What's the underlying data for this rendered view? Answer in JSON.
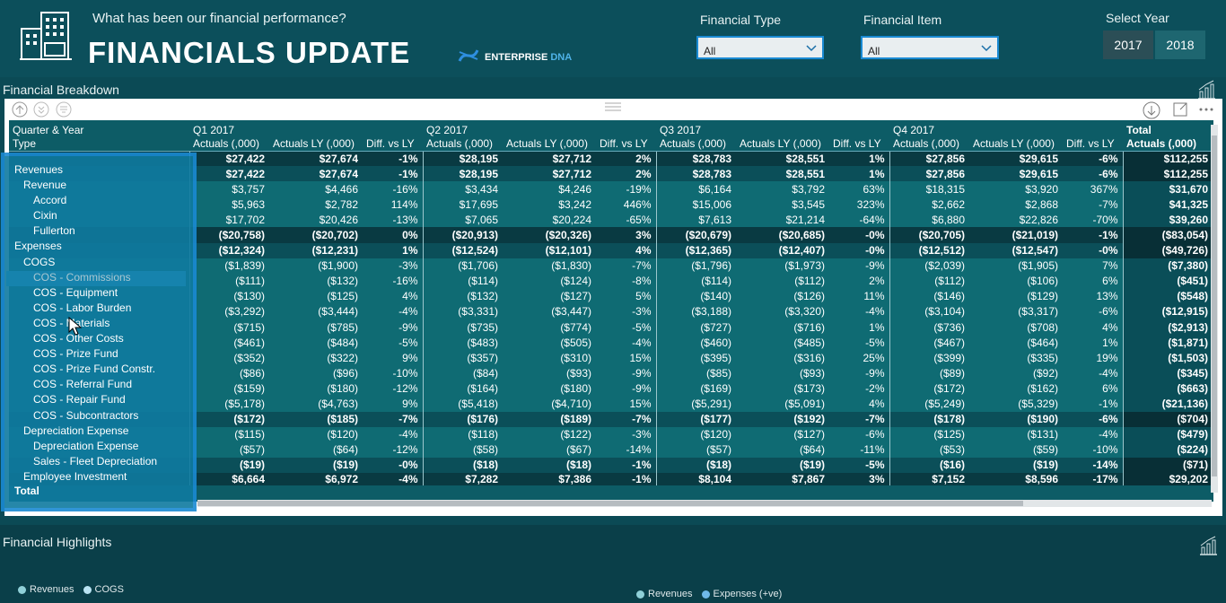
{
  "header": {
    "subtitle": "What has been our financial performance?",
    "title": "FINANCIALS UPDATE",
    "brand_a": "ENTERPRISE",
    "brand_b": "DNA"
  },
  "filters": {
    "financial_type": {
      "label": "Financial Type",
      "value": "All"
    },
    "financial_item": {
      "label": "Financial Item",
      "value": "All"
    }
  },
  "year_selector": {
    "label": "Select Year",
    "years": [
      "2017",
      "2018"
    ],
    "selected": "2017"
  },
  "breakdown": {
    "title": "Financial Breakdown",
    "row_header_1": "Quarter & Year",
    "row_header_2": "Type",
    "quarters": [
      "Q1 2017",
      "Q2 2017",
      "Q3 2017",
      "Q4 2017"
    ],
    "total_header": "Total",
    "col_actuals": "Actuals (,000)",
    "col_ly": "Actuals LY (,000)",
    "col_diff": "Diff. vs LY",
    "rows": [
      {
        "label": "Revenues",
        "level": 0,
        "kind": "grp",
        "vals": [
          "$27,422",
          "$27,674",
          "-1%",
          "$28,195",
          "$27,712",
          "2%",
          "$28,783",
          "$28,551",
          "1%",
          "$27,856",
          "$29,615",
          "-6%",
          "$112,255"
        ]
      },
      {
        "label": "Revenue",
        "level": 1,
        "kind": "sub",
        "vals": [
          "$27,422",
          "$27,674",
          "-1%",
          "$28,195",
          "$27,712",
          "2%",
          "$28,783",
          "$28,551",
          "1%",
          "$27,856",
          "$29,615",
          "-6%",
          "$112,255"
        ]
      },
      {
        "label": "Accord",
        "level": 2,
        "kind": "leaf",
        "vals": [
          "$3,757",
          "$4,466",
          "-16%",
          "$3,434",
          "$4,246",
          "-19%",
          "$6,164",
          "$3,792",
          "63%",
          "$18,315",
          "$3,920",
          "367%",
          "$31,670"
        ]
      },
      {
        "label": "Cixin",
        "level": 2,
        "kind": "leaf",
        "vals": [
          "$5,963",
          "$2,782",
          "114%",
          "$17,695",
          "$3,242",
          "446%",
          "$15,006",
          "$3,545",
          "323%",
          "$2,662",
          "$2,868",
          "-7%",
          "$41,325"
        ]
      },
      {
        "label": "Fullerton",
        "level": 2,
        "kind": "leaf",
        "vals": [
          "$17,702",
          "$20,426",
          "-13%",
          "$7,065",
          "$20,224",
          "-65%",
          "$7,613",
          "$21,214",
          "-64%",
          "$6,880",
          "$22,826",
          "-70%",
          "$39,260"
        ]
      },
      {
        "label": "Expenses",
        "level": 0,
        "kind": "grp",
        "vals": [
          "($20,758)",
          "($20,702)",
          "0%",
          "($20,913)",
          "($20,326)",
          "3%",
          "($20,679)",
          "($20,685)",
          "-0%",
          "($20,705)",
          "($21,019)",
          "-1%",
          "($83,054)"
        ]
      },
      {
        "label": "COGS",
        "level": 1,
        "kind": "sub",
        "vals": [
          "($12,324)",
          "($12,231)",
          "1%",
          "($12,524)",
          "($12,101)",
          "4%",
          "($12,365)",
          "($12,407)",
          "-0%",
          "($12,512)",
          "($12,547)",
          "-0%",
          "($49,726)"
        ]
      },
      {
        "label": "COS - Commissions",
        "level": 2,
        "kind": "leaf",
        "hl": true,
        "vals": [
          "($1,839)",
          "($1,900)",
          "-3%",
          "($1,706)",
          "($1,830)",
          "-7%",
          "($1,796)",
          "($1,973)",
          "-9%",
          "($2,039)",
          "($1,905)",
          "7%",
          "($7,380)"
        ]
      },
      {
        "label": "COS - Equipment",
        "level": 2,
        "kind": "leaf",
        "vals": [
          "($111)",
          "($132)",
          "-16%",
          "($114)",
          "($124)",
          "-8%",
          "($114)",
          "($112)",
          "2%",
          "($112)",
          "($106)",
          "6%",
          "($451)"
        ]
      },
      {
        "label": "COS - Labor Burden",
        "level": 2,
        "kind": "leaf",
        "vals": [
          "($130)",
          "($125)",
          "4%",
          "($132)",
          "($127)",
          "5%",
          "($140)",
          "($126)",
          "11%",
          "($146)",
          "($129)",
          "13%",
          "($548)"
        ]
      },
      {
        "label": "COS - Materials",
        "level": 2,
        "kind": "leaf",
        "vals": [
          "($3,292)",
          "($3,444)",
          "-4%",
          "($3,331)",
          "($3,447)",
          "-3%",
          "($3,188)",
          "($3,320)",
          "-4%",
          "($3,104)",
          "($3,317)",
          "-6%",
          "($12,915)"
        ]
      },
      {
        "label": "COS - Other Costs",
        "level": 2,
        "kind": "leaf",
        "vals": [
          "($715)",
          "($785)",
          "-9%",
          "($735)",
          "($774)",
          "-5%",
          "($727)",
          "($716)",
          "1%",
          "($736)",
          "($708)",
          "4%",
          "($2,913)"
        ]
      },
      {
        "label": "COS - Prize Fund",
        "level": 2,
        "kind": "leaf",
        "vals": [
          "($461)",
          "($484)",
          "-5%",
          "($483)",
          "($505)",
          "-4%",
          "($460)",
          "($485)",
          "-5%",
          "($467)",
          "($464)",
          "1%",
          "($1,871)"
        ]
      },
      {
        "label": "COS - Prize Fund Constr.",
        "level": 2,
        "kind": "leaf",
        "vals": [
          "($352)",
          "($322)",
          "9%",
          "($357)",
          "($310)",
          "15%",
          "($395)",
          "($316)",
          "25%",
          "($399)",
          "($335)",
          "19%",
          "($1,503)"
        ]
      },
      {
        "label": "COS - Referral Fund",
        "level": 2,
        "kind": "leaf",
        "vals": [
          "($86)",
          "($96)",
          "-10%",
          "($84)",
          "($93)",
          "-9%",
          "($85)",
          "($93)",
          "-9%",
          "($89)",
          "($92)",
          "-4%",
          "($345)"
        ]
      },
      {
        "label": "COS - Repair Fund",
        "level": 2,
        "kind": "leaf",
        "vals": [
          "($159)",
          "($180)",
          "-12%",
          "($164)",
          "($180)",
          "-9%",
          "($169)",
          "($173)",
          "-2%",
          "($172)",
          "($162)",
          "6%",
          "($663)"
        ]
      },
      {
        "label": "COS - Subcontractors",
        "level": 2,
        "kind": "leaf",
        "vals": [
          "($5,178)",
          "($4,763)",
          "9%",
          "($5,418)",
          "($4,710)",
          "15%",
          "($5,291)",
          "($5,091)",
          "4%",
          "($5,249)",
          "($5,329)",
          "-1%",
          "($21,136)"
        ]
      },
      {
        "label": "Depreciation Expense",
        "level": 1,
        "kind": "sub",
        "vals": [
          "($172)",
          "($185)",
          "-7%",
          "($176)",
          "($189)",
          "-7%",
          "($177)",
          "($192)",
          "-7%",
          "($178)",
          "($190)",
          "-6%",
          "($704)"
        ]
      },
      {
        "label": "Depreciation Expense",
        "level": 2,
        "kind": "leaf",
        "vals": [
          "($115)",
          "($120)",
          "-4%",
          "($118)",
          "($122)",
          "-3%",
          "($120)",
          "($127)",
          "-6%",
          "($125)",
          "($131)",
          "-4%",
          "($479)"
        ]
      },
      {
        "label": "Sales - Fleet Depreciation",
        "level": 2,
        "kind": "leaf",
        "vals": [
          "($57)",
          "($64)",
          "-12%",
          "($58)",
          "($67)",
          "-14%",
          "($57)",
          "($64)",
          "-11%",
          "($53)",
          "($59)",
          "-10%",
          "($224)"
        ]
      },
      {
        "label": "Employee Investment",
        "level": 1,
        "kind": "sub",
        "vals": [
          "($19)",
          "($19)",
          "-0%",
          "($18)",
          "($18)",
          "-1%",
          "($18)",
          "($19)",
          "-5%",
          "($16)",
          "($19)",
          "-14%",
          "($71)"
        ]
      }
    ],
    "total_row": {
      "label": "Total",
      "vals": [
        "$6,664",
        "$6,972",
        "-4%",
        "$7,282",
        "$7,386",
        "-1%",
        "$8,104",
        "$7,867",
        "3%",
        "$7,152",
        "$8,596",
        "-17%",
        "$29,202"
      ]
    }
  },
  "highlights": {
    "title": "Financial Highlights",
    "legend_left": [
      {
        "label": "Revenues",
        "color": "#8fd0d8"
      },
      {
        "label": "COGS",
        "color": "#b9e3f2"
      }
    ],
    "legend_right": [
      {
        "label": "Revenues",
        "color": "#8fd0d8"
      },
      {
        "label": "Expenses (+ve)",
        "color": "#6fb9e8"
      }
    ]
  }
}
